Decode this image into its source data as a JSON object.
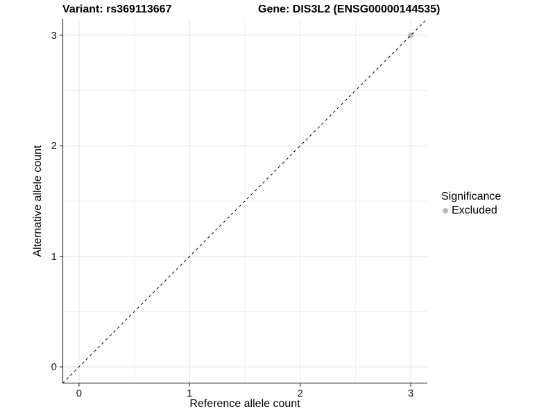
{
  "titles": {
    "variant": "Variant: rs369113667",
    "gene": "Gene: DIS3L2 (ENSG00000144535)"
  },
  "chart_data": {
    "type": "scatter",
    "xlabel": "Reference allele count",
    "ylabel": "Alternative allele count",
    "xlim": [
      -0.15,
      3.15
    ],
    "ylim": [
      -0.15,
      3.15
    ],
    "xticks": [
      0,
      1,
      2,
      3
    ],
    "yticks": [
      0,
      1,
      2,
      3
    ],
    "minor_xticks": [
      0.5,
      1.5,
      2.5
    ],
    "minor_yticks": [
      0.5,
      1.5,
      2.5
    ],
    "grid": "major and minor gridlines, light gray on white panel",
    "identity_line": {
      "style": "dashed",
      "color": "#000000",
      "from": -0.15,
      "to": 3.15
    },
    "series": [
      {
        "name": "Excluded",
        "color": "#bebebe",
        "points": [
          {
            "x": 3,
            "y": 3
          }
        ]
      }
    ],
    "legend_position": "right"
  },
  "legend": {
    "title": "Significance",
    "items": [
      {
        "label": "Excluded",
        "color": "#b8b8b8"
      }
    ]
  },
  "colors": {
    "background": "#ffffff",
    "axis_line": "#3c3c3c",
    "tick_mark": "#333333",
    "grid_major": "#e2e2e2",
    "grid_minor": "#f0f0f0",
    "tick_text": "#1a1a1a"
  }
}
